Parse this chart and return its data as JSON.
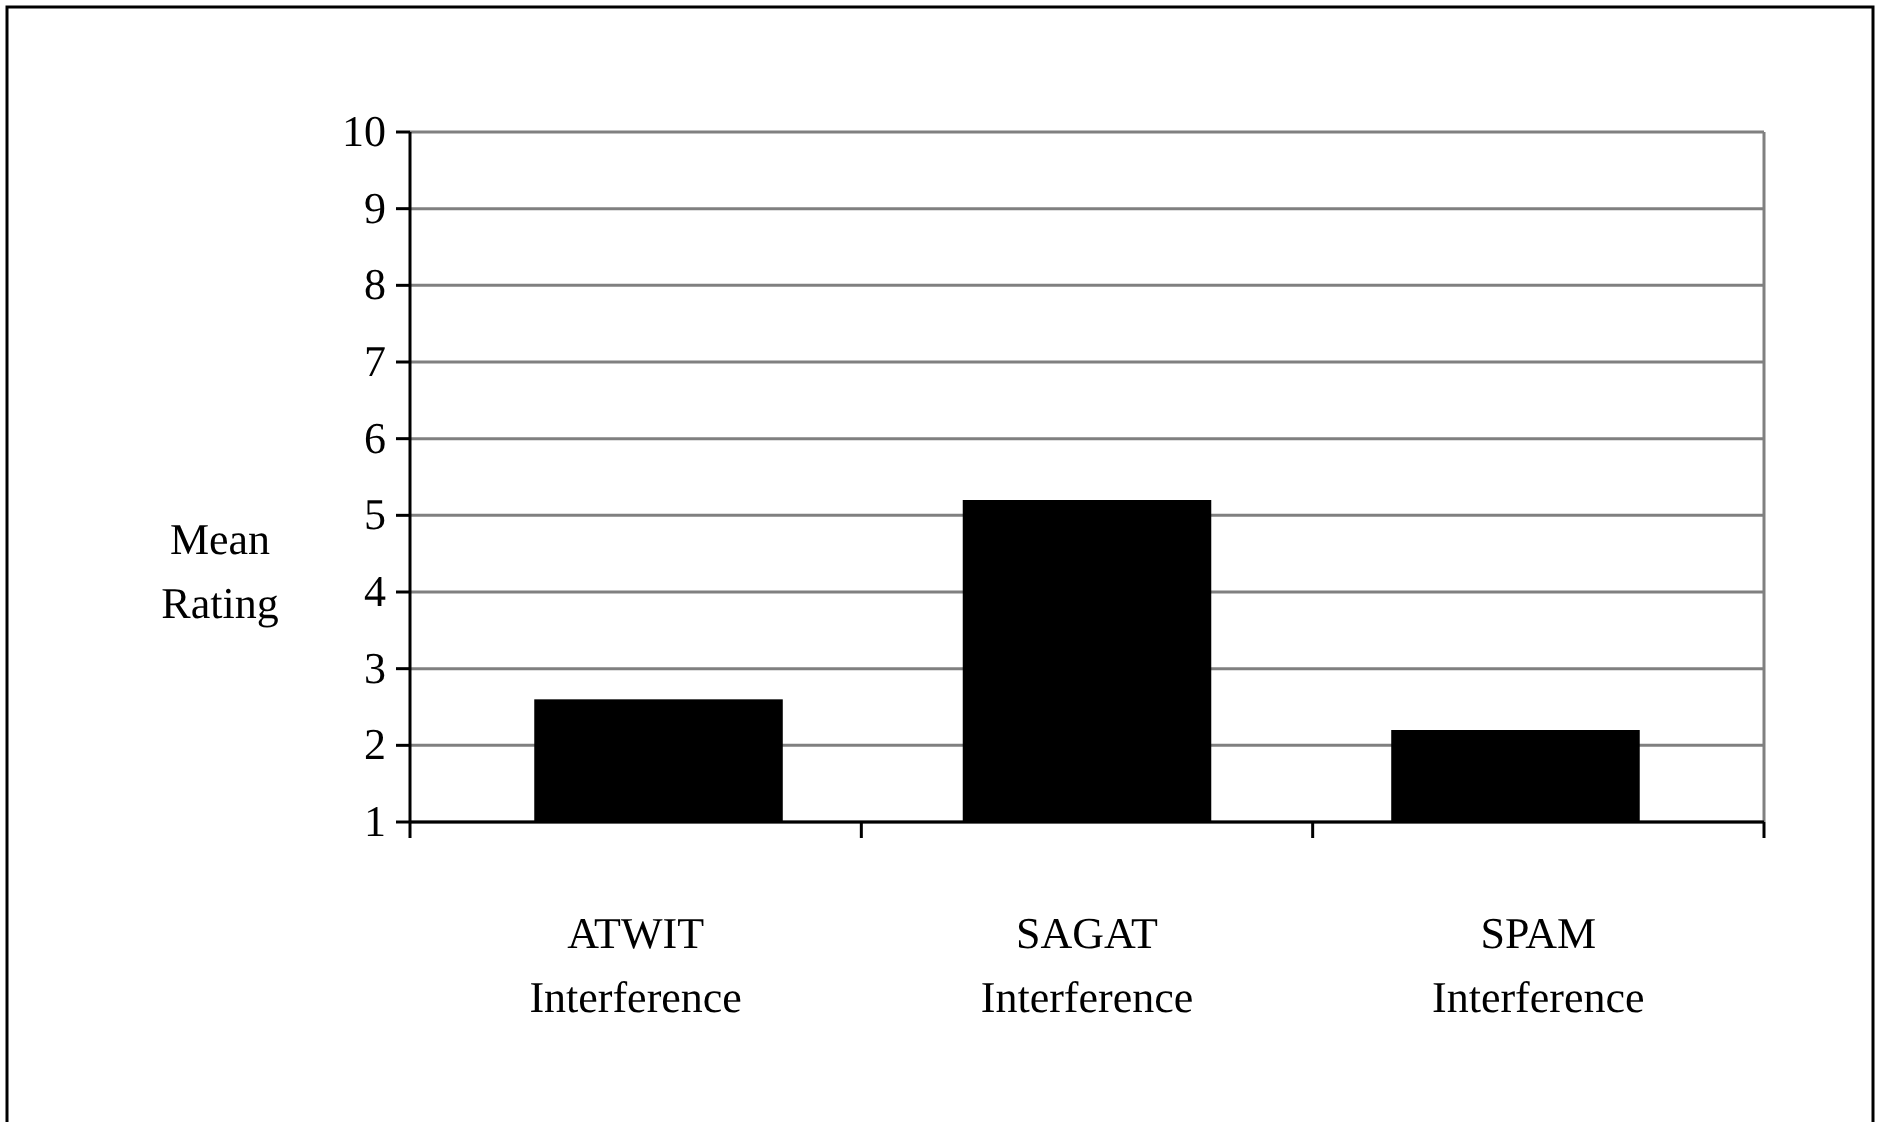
{
  "chart_data": {
    "type": "bar",
    "ylabel": "Mean Rating",
    "categories": [
      "ATWIT Interference",
      "SAGAT Interference",
      "SPAM Interference"
    ],
    "values": [
      2.6,
      5.2,
      2.2
    ],
    "color": "#000000",
    "ylim": [
      1,
      10
    ],
    "yticks": [
      1,
      2,
      3,
      4,
      5,
      6,
      7,
      8,
      9,
      10
    ],
    "grid": "y"
  }
}
